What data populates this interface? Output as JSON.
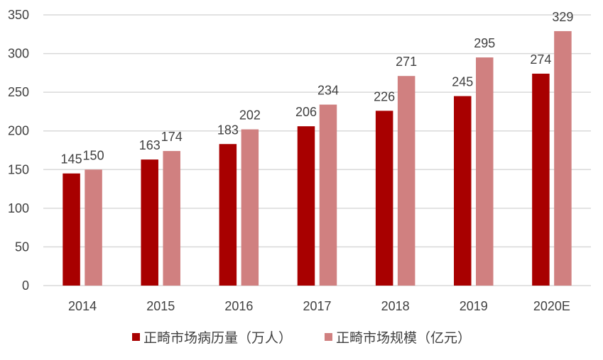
{
  "chart_data": {
    "type": "bar",
    "title": "",
    "xlabel": "",
    "ylabel": "",
    "categories": [
      "2014",
      "2015",
      "2016",
      "2017",
      "2018",
      "2019",
      "2020E"
    ],
    "series": [
      {
        "name": "正畸市场病历量（万人）",
        "color": "#a80000",
        "values": [
          145,
          163,
          183,
          206,
          226,
          245,
          274
        ]
      },
      {
        "name": "正畸市场规模（亿元）",
        "color": "#d08080",
        "values": [
          150,
          174,
          202,
          234,
          271,
          295,
          329
        ]
      }
    ],
    "ylim": [
      0,
      350
    ],
    "yticks": [
      0,
      50,
      100,
      150,
      200,
      250,
      300,
      350
    ],
    "grid": true,
    "data_labels": true,
    "legend_position": "bottom"
  },
  "legend": {
    "items": [
      {
        "label": "正畸市场病历量（万人）",
        "color": "#a80000"
      },
      {
        "label": "正畸市场规模（亿元）",
        "color": "#d08080"
      }
    ]
  }
}
